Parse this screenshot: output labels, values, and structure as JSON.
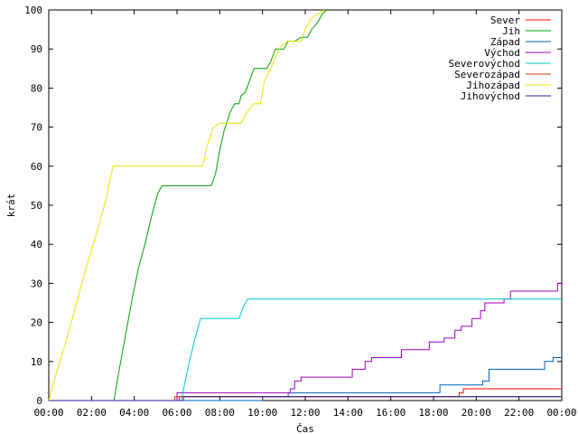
{
  "chart_data": {
    "type": "line",
    "ylabel": "krát",
    "xlabel": "Čas",
    "xlim": [
      0,
      24
    ],
    "ylim": [
      0,
      100
    ],
    "grid": false,
    "legend_position": "top-right",
    "x_tick_labels": [
      "00:00",
      "02:00",
      "04:00",
      "06:00",
      "08:00",
      "10:00",
      "12:00",
      "14:00",
      "16:00",
      "18:00",
      "20:00",
      "22:00",
      "00:00"
    ],
    "y_tick_labels": [
      "0",
      "10",
      "20",
      "30",
      "40",
      "50",
      "60",
      "70",
      "80",
      "90",
      "100"
    ],
    "series": [
      {
        "name": "Sever",
        "color": "#ff0000",
        "points": [
          [
            0,
            0
          ],
          [
            6.1,
            0
          ],
          [
            6.1,
            1
          ],
          [
            19.2,
            1
          ],
          [
            19.2,
            2
          ],
          [
            19.4,
            2
          ],
          [
            19.4,
            3
          ],
          [
            24,
            3
          ]
        ]
      },
      {
        "name": "Jih",
        "color": "#00a000",
        "points": [
          [
            0,
            0
          ],
          [
            3.05,
            0
          ],
          [
            3.3,
            8
          ],
          [
            3.6,
            17
          ],
          [
            3.9,
            26
          ],
          [
            4.2,
            34
          ],
          [
            4.5,
            40
          ],
          [
            4.8,
            47
          ],
          [
            5.1,
            53
          ],
          [
            5.3,
            55
          ],
          [
            6.5,
            55
          ],
          [
            7.6,
            55
          ],
          [
            7.8,
            58
          ],
          [
            8,
            64
          ],
          [
            8.2,
            69
          ],
          [
            8.5,
            74
          ],
          [
            8.7,
            76
          ],
          [
            8.9,
            76
          ],
          [
            9,
            78
          ],
          [
            9.2,
            79
          ],
          [
            9.4,
            82
          ],
          [
            9.6,
            85
          ],
          [
            10.2,
            85
          ],
          [
            10.4,
            87
          ],
          [
            10.6,
            90
          ],
          [
            11,
            90
          ],
          [
            11.2,
            92
          ],
          [
            11.5,
            92
          ],
          [
            11.8,
            93
          ],
          [
            12.1,
            93
          ],
          [
            12.3,
            95
          ],
          [
            12.6,
            97
          ],
          [
            12.8,
            99
          ],
          [
            13,
            100
          ]
        ]
      },
      {
        "name": "Západ",
        "color": "#0060c0",
        "points": [
          [
            0,
            0
          ],
          [
            10,
            0
          ],
          [
            10,
            1
          ],
          [
            11.2,
            1
          ],
          [
            11.2,
            2
          ],
          [
            18.3,
            2
          ],
          [
            18.3,
            4
          ],
          [
            20.3,
            4
          ],
          [
            20.3,
            5
          ],
          [
            20.6,
            5
          ],
          [
            20.6,
            8
          ],
          [
            23.2,
            8
          ],
          [
            23.2,
            10
          ],
          [
            23.6,
            10
          ],
          [
            23.6,
            11
          ],
          [
            24,
            11
          ]
        ]
      },
      {
        "name": "Východ",
        "color": "#a000c0",
        "points": [
          [
            0,
            0
          ],
          [
            6,
            0
          ],
          [
            6,
            2
          ],
          [
            11.3,
            2
          ],
          [
            11.3,
            3
          ],
          [
            11.5,
            3
          ],
          [
            11.5,
            5
          ],
          [
            11.8,
            5
          ],
          [
            11.8,
            6
          ],
          [
            14.2,
            6
          ],
          [
            14.2,
            8
          ],
          [
            14.8,
            8
          ],
          [
            14.8,
            10
          ],
          [
            15.1,
            10
          ],
          [
            15.1,
            11
          ],
          [
            16.5,
            11
          ],
          [
            16.5,
            13
          ],
          [
            17.8,
            13
          ],
          [
            17.8,
            15
          ],
          [
            18.5,
            15
          ],
          [
            18.5,
            16
          ],
          [
            19,
            16
          ],
          [
            19,
            18
          ],
          [
            19.3,
            18
          ],
          [
            19.3,
            19
          ],
          [
            19.8,
            19
          ],
          [
            19.8,
            21
          ],
          [
            20.2,
            21
          ],
          [
            20.2,
            23
          ],
          [
            20.4,
            23
          ],
          [
            20.4,
            25
          ],
          [
            21.3,
            25
          ],
          [
            21.3,
            26
          ],
          [
            21.6,
            26
          ],
          [
            21.6,
            28
          ],
          [
            23.8,
            28
          ],
          [
            23.8,
            30
          ],
          [
            24,
            30
          ]
        ]
      },
      {
        "name": "Severovýchod",
        "color": "#00c8c8",
        "points": [
          [
            0,
            0
          ],
          [
            6.2,
            0
          ],
          [
            6.5,
            8
          ],
          [
            6.8,
            15
          ],
          [
            7.1,
            21
          ],
          [
            8.9,
            21
          ],
          [
            9.1,
            24
          ],
          [
            9.3,
            26
          ],
          [
            24,
            26
          ]
        ]
      },
      {
        "name": "Severozápad",
        "color": "#c04000",
        "points": [
          [
            0,
            0
          ],
          [
            5.9,
            0
          ],
          [
            5.9,
            1
          ],
          [
            24,
            1
          ]
        ]
      },
      {
        "name": "Jihozápad",
        "color": "#e6e600",
        "points": [
          [
            0,
            0
          ],
          [
            0.3,
            6
          ],
          [
            0.8,
            15
          ],
          [
            1.3,
            25
          ],
          [
            1.8,
            35
          ],
          [
            2.3,
            44
          ],
          [
            2.7,
            52
          ],
          [
            3,
            60
          ],
          [
            7.2,
            60
          ],
          [
            7.4,
            65
          ],
          [
            7.7,
            70
          ],
          [
            8,
            71
          ],
          [
            9,
            71
          ],
          [
            9.3,
            74
          ],
          [
            9.6,
            76
          ],
          [
            9.9,
            76
          ],
          [
            10.1,
            82
          ],
          [
            10.4,
            85
          ],
          [
            10.6,
            88
          ],
          [
            10.9,
            91
          ],
          [
            11.2,
            92
          ],
          [
            11.8,
            92
          ],
          [
            12,
            95
          ],
          [
            12.3,
            98
          ],
          [
            12.6,
            99
          ],
          [
            12.9,
            100
          ]
        ]
      },
      {
        "name": "Jihovýchod",
        "color": "#2020a0",
        "points": [
          [
            0,
            0
          ],
          [
            6.3,
            0
          ],
          [
            6.3,
            1
          ],
          [
            24,
            1
          ]
        ]
      }
    ]
  }
}
